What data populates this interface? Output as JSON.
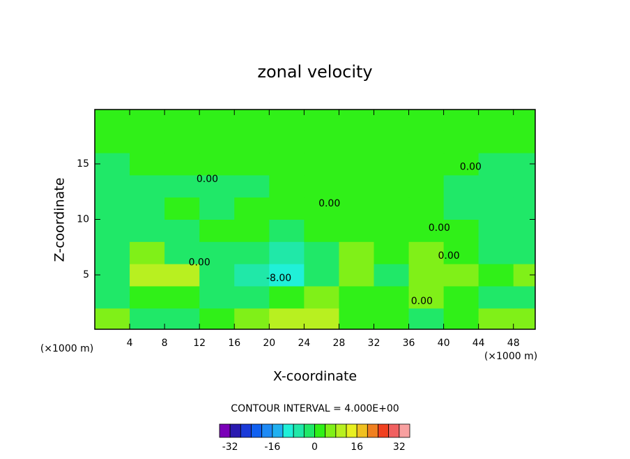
{
  "chart_data": {
    "type": "contour",
    "title": "zonal velocity",
    "xlabel": "X-coordinate",
    "ylabel": "Z-coordinate",
    "x_unit": "(×1000 m)",
    "xlim": [
      0,
      50.5
    ],
    "ylim": [
      0.1,
      19.9
    ],
    "xticks": [
      4,
      8,
      12,
      16,
      20,
      24,
      28,
      32,
      36,
      40,
      44,
      48
    ],
    "yticks": [
      5,
      10,
      15
    ],
    "x": [
      2,
      6,
      10,
      14,
      18,
      22,
      26,
      30,
      34,
      38,
      42,
      46,
      50
    ],
    "y": [
      1,
      3,
      5,
      7,
      9,
      11,
      13,
      15,
      17,
      19
    ],
    "z": [
      [
        6,
        -2,
        -2,
        2,
        4,
        8,
        8,
        2,
        2,
        -2,
        2,
        6,
        6
      ],
      [
        -2,
        2,
        2,
        -2,
        -4,
        2,
        4,
        2,
        2,
        6,
        2,
        -4,
        -2
      ],
      [
        -2,
        8,
        8,
        -2,
        -6,
        -10,
        -2,
        6,
        -2,
        6,
        6,
        2,
        6
      ],
      [
        -2,
        6,
        -2,
        -2,
        -2,
        -6,
        -2,
        6,
        2,
        6,
        2,
        -2,
        -2
      ],
      [
        -2,
        -2,
        -2,
        2,
        2,
        -2,
        2,
        2,
        2,
        2,
        2,
        -2,
        -2
      ],
      [
        -2,
        -2,
        2,
        -2,
        2,
        2,
        2,
        2,
        2,
        2,
        -2,
        -2,
        -2
      ],
      [
        -2,
        -2,
        -2,
        -2,
        -2,
        2,
        2,
        2,
        2,
        2,
        -2,
        -2,
        -2
      ],
      [
        -2,
        2,
        2,
        2,
        2,
        2,
        2,
        2,
        2,
        2,
        2,
        -2,
        -2
      ],
      [
        2,
        2,
        2,
        2,
        2,
        2,
        2,
        2,
        2,
        2,
        2,
        2,
        2
      ],
      [
        2,
        2,
        2,
        2,
        2,
        2,
        2,
        2,
        2,
        2,
        2,
        2,
        2
      ]
    ],
    "contour_labels": [
      {
        "text": "0.00",
        "x": 12.9,
        "y": 13.6
      },
      {
        "text": "0.00",
        "x": 26.9,
        "y": 11.4
      },
      {
        "text": "0.00",
        "x": 39.5,
        "y": 9.2
      },
      {
        "text": "0.00",
        "x": 40.6,
        "y": 6.7
      },
      {
        "text": "0.00",
        "x": 43.1,
        "y": 14.7
      },
      {
        "text": "0.00",
        "x": 12.0,
        "y": 6.1
      },
      {
        "text": "0.00",
        "x": 37.5,
        "y": 2.6
      },
      {
        "text": "-8.00",
        "x": 21.1,
        "y": 4.7
      }
    ],
    "colorbar": {
      "title": "CONTOUR INTERVAL = 4.000E+00",
      "levels": [
        -36,
        -32,
        -28,
        -24,
        -20,
        -16,
        -12,
        -8,
        -4,
        0,
        4,
        8,
        12,
        16,
        20,
        24,
        28,
        32,
        36
      ],
      "colors": [
        "#7a00b8",
        "#2a1ab0",
        "#1a3ad8",
        "#1060f0",
        "#1e8af5",
        "#20b0f0",
        "#20f0d8",
        "#20e8a8",
        "#20e868",
        "#30f018",
        "#80f018",
        "#b8f020",
        "#e8f020",
        "#f0c020",
        "#f08020",
        "#f04020",
        "#f06060",
        "#f8a0a0"
      ],
      "ticks": [
        -32,
        -16,
        0,
        16,
        32
      ]
    }
  }
}
